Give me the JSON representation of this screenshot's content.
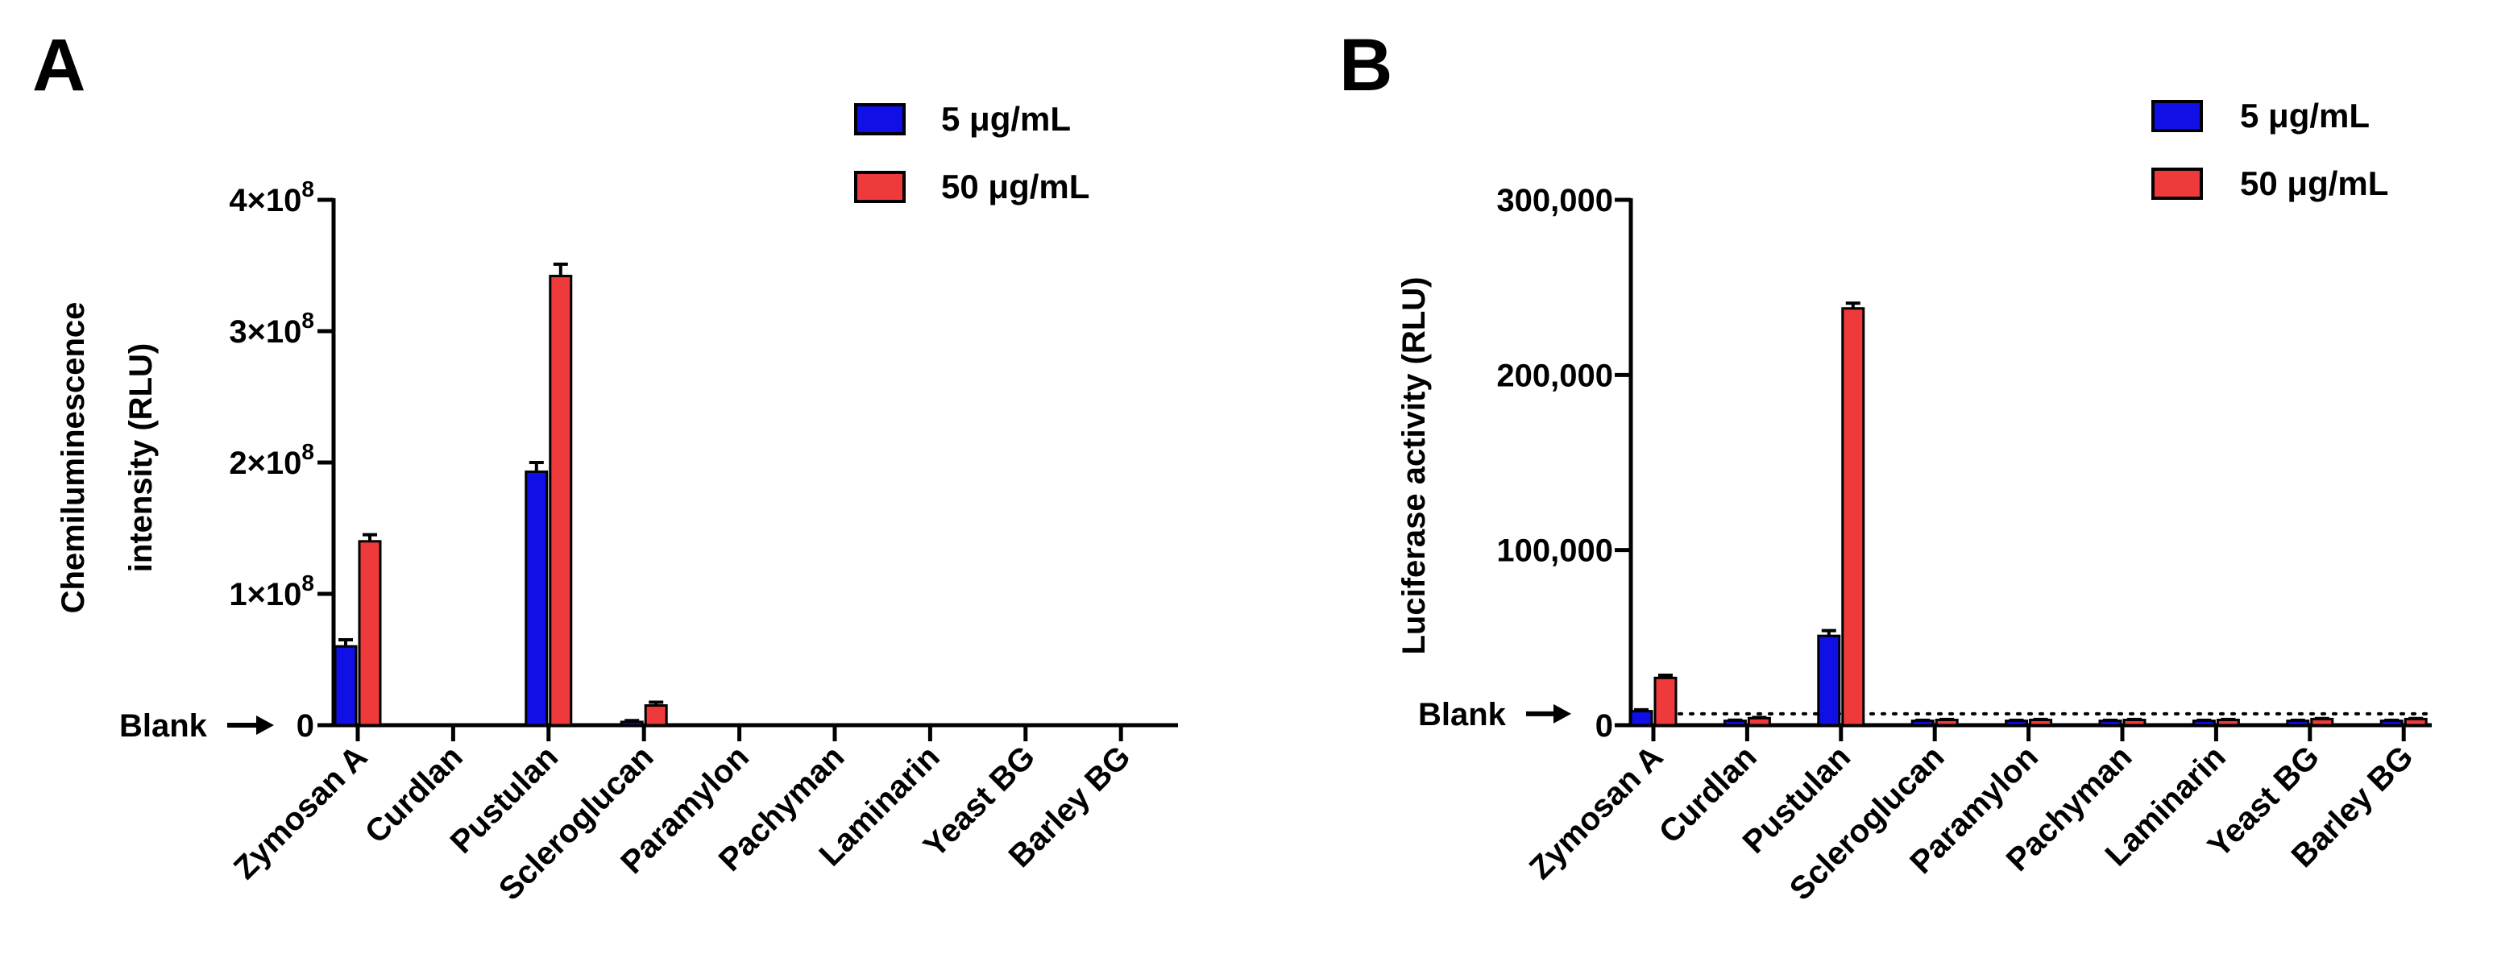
{
  "colors": {
    "series1": "#1010e6",
    "series2": "#ee3a3a",
    "axis": "#000000"
  },
  "chart_data": [
    {
      "type": "bar",
      "panel": "A",
      "categories": [
        "Zymosan A",
        "Curdlan",
        "Pustulan",
        "Scleroglucan",
        "Paramylon",
        "Pachyman",
        "Laminarin",
        "Yeast BG",
        "Barley BG"
      ],
      "series": [
        {
          "name": "5 μg/mL",
          "values": [
            60000000,
            0,
            193000000,
            2500000,
            0,
            0,
            0,
            0,
            0
          ],
          "errors": [
            5000000,
            0,
            7000000,
            1000000,
            0,
            0,
            0,
            0,
            0
          ]
        },
        {
          "name": "50 μg/mL",
          "values": [
            140000000,
            0,
            342000000,
            15000000,
            0,
            0,
            0,
            0,
            0
          ],
          "errors": [
            5000000,
            0,
            9000000,
            2500000,
            0,
            0,
            0,
            0,
            0
          ]
        }
      ],
      "ylim": [
        0,
        400000000
      ],
      "yticks": [
        0,
        100000000,
        200000000,
        300000000,
        400000000
      ],
      "ytick_labels": [
        {
          "mantissa": "0",
          "exp": ""
        },
        {
          "mantissa": "1×10",
          "exp": "8"
        },
        {
          "mantissa": "2×10",
          "exp": "8"
        },
        {
          "mantissa": "3×10",
          "exp": "8"
        },
        {
          "mantissa": "4×10",
          "exp": "8"
        }
      ],
      "ylabel_line1": "Chemiluminescence",
      "ylabel_line2": "intensity (RLU)",
      "blank_label": "Blank",
      "blank_value": 0,
      "blank_dotted": false,
      "legend": "top-right"
    },
    {
      "type": "bar",
      "panel": "B",
      "categories": [
        "Zymosan A",
        "Curdlan",
        "Pustulan",
        "Scleroglucan",
        "Paramylon",
        "Pachyman",
        "Laminarin",
        "Yeast BG",
        "Barley BG"
      ],
      "series": [
        {
          "name": "5 μg/mL",
          "values": [
            8000,
            2500,
            51000,
            2500,
            2500,
            2500,
            2500,
            2500,
            2500
          ],
          "errors": [
            800,
            400,
            3000,
            300,
            300,
            300,
            300,
            300,
            300
          ]
        },
        {
          "name": "50 μg/mL",
          "values": [
            27000,
            4000,
            238000,
            3000,
            3000,
            3000,
            3000,
            3500,
            3500
          ],
          "errors": [
            1500,
            400,
            3000,
            300,
            300,
            300,
            300,
            300,
            300
          ]
        }
      ],
      "ylim": [
        0,
        300000
      ],
      "yticks": [
        0,
        100000,
        200000,
        300000
      ],
      "ytick_labels": [
        {
          "mantissa": "0",
          "exp": ""
        },
        {
          "mantissa": "100,000",
          "exp": ""
        },
        {
          "mantissa": "200,000",
          "exp": ""
        },
        {
          "mantissa": "300,000",
          "exp": ""
        }
      ],
      "ylabel_line1": "Luciferase activity (RLU)",
      "ylabel_line2": "",
      "blank_label": "Blank",
      "blank_value": 6500,
      "blank_dotted": true,
      "legend": "top-right"
    }
  ]
}
